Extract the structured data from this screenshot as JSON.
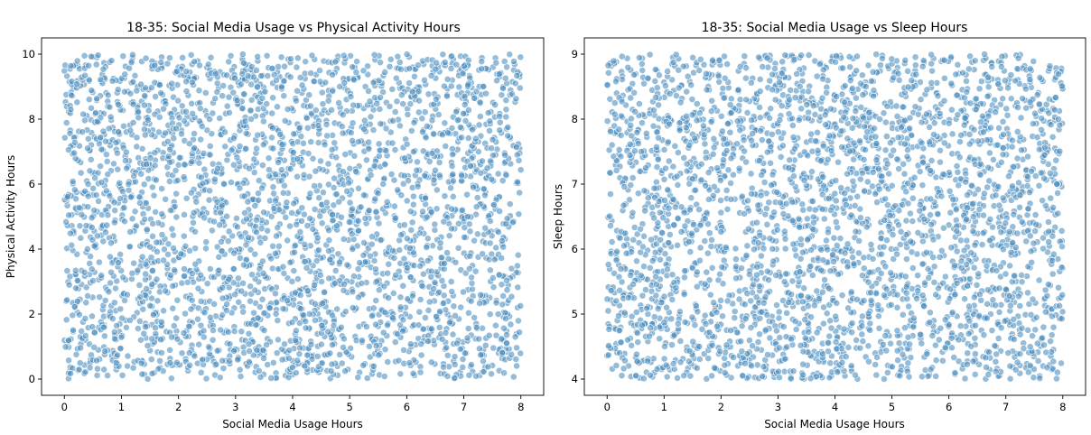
{
  "chart_data": [
    {
      "type": "scatter",
      "title": "18-35: Social Media Usage vs Physical Activity Hours",
      "xlabel": "Social Media Usage Hours",
      "ylabel": "Physical Activity Hours",
      "xlim": [
        -0.4,
        8.4
      ],
      "ylim": [
        -0.5,
        10.5
      ],
      "xticks": [
        "0",
        "1",
        "2",
        "3",
        "4",
        "5",
        "6",
        "7",
        "8"
      ],
      "yticks": [
        "0",
        "2",
        "4",
        "6",
        "8",
        "10"
      ],
      "grid": false,
      "color": "#4f8fc0",
      "n_points": 3100,
      "x_range": [
        0,
        8
      ],
      "y_range": [
        0,
        10
      ],
      "seed": 20240611
    },
    {
      "type": "scatter",
      "title": "18-35: Social Media Usage vs Sleep Hours",
      "xlabel": "Social Media Usage Hours",
      "ylabel": "Sleep Hours",
      "xlim": [
        -0.4,
        8.4
      ],
      "ylim": [
        3.75,
        9.25
      ],
      "xticks": [
        "0",
        "1",
        "2",
        "3",
        "4",
        "5",
        "6",
        "7",
        "8"
      ],
      "yticks": [
        "4",
        "5",
        "6",
        "7",
        "8",
        "9"
      ],
      "grid": false,
      "color": "#4f8fc0",
      "n_points": 3100,
      "x_range": [
        0,
        8
      ],
      "y_range": [
        4,
        9
      ],
      "seed": 98765
    }
  ]
}
